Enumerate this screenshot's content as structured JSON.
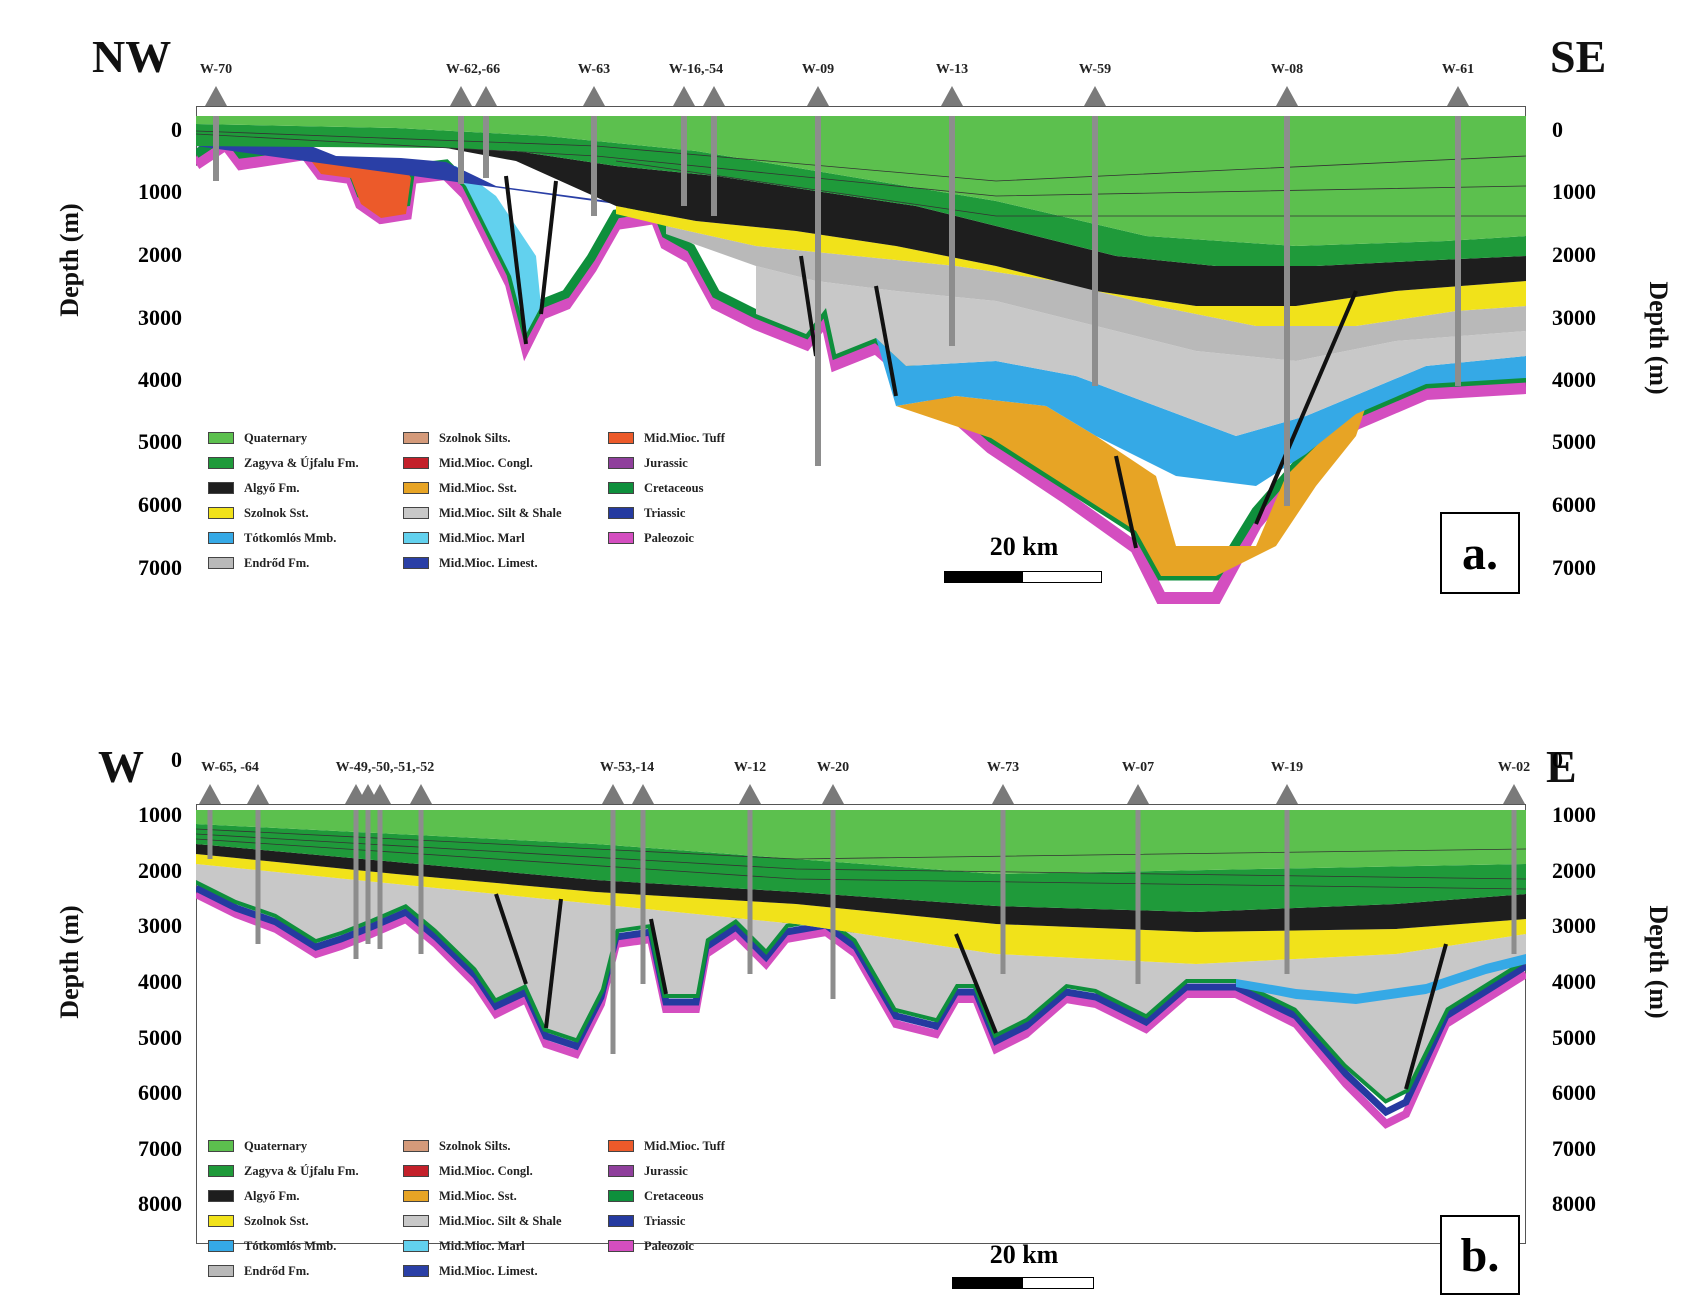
{
  "panels": [
    {
      "id": "a",
      "left_dir": "NW",
      "right_dir": "SE",
      "panel_label": "a.",
      "scale_label": "20 km",
      "depth_label": "Depth (m)",
      "depth_ticks": [
        "0",
        "1000",
        "2000",
        "3000",
        "4000",
        "5000",
        "6000",
        "7000"
      ],
      "wells": [
        "W-70",
        "W-62,-66",
        "W-63",
        "W-16,-54",
        "W-09",
        "W-13",
        "W-59",
        "W-08",
        "W-61"
      ]
    },
    {
      "id": "b",
      "left_dir": "W",
      "right_dir": "E",
      "panel_label": "b.",
      "scale_label": "20 km",
      "depth_label": "Depth (m)",
      "depth_ticks": [
        "0",
        "1000",
        "2000",
        "3000",
        "4000",
        "5000",
        "6000",
        "7000",
        "8000"
      ],
      "wells": [
        "W-65, -64",
        "W-49,-50,-51,-52",
        "W-53,-14",
        "W-12",
        "W-20",
        "W-73",
        "W-07",
        "W-19",
        "W-02"
      ]
    }
  ],
  "legend": [
    {
      "label": "Quaternary",
      "color": "#5cc04e"
    },
    {
      "label": "Zagyva & Újfalu Fm.",
      "color": "#1f9a3a"
    },
    {
      "label": "Algyő Fm.",
      "color": "#1e1e1e"
    },
    {
      "label": "Szolnok Sst.",
      "color": "#f1e21a"
    },
    {
      "label": "Tótkomlós Mmb.",
      "color": "#35a9e6"
    },
    {
      "label": "Endrőd Fm.",
      "color": "#b9b9b9"
    },
    {
      "label": "Szolnok Silts.",
      "color": "#d49a7a"
    },
    {
      "label": "Mid.Mioc. Congl.",
      "color": "#c3202a"
    },
    {
      "label": "Mid.Mioc. Sst.",
      "color": "#e7a425"
    },
    {
      "label": "Mid.Mioc. Silt & Shale",
      "color": "#c8c8c8"
    },
    {
      "label": "Mid.Mioc. Marl",
      "color": "#62d1ee"
    },
    {
      "label": "Mid.Mioc. Limest.",
      "color": "#2a3fa6"
    },
    {
      "label": "Mid.Mioc. Tuff",
      "color": "#ec5a2a"
    },
    {
      "label": "Jurassic",
      "color": "#8f3f9c"
    },
    {
      "label": "Cretaceous",
      "color": "#0e8f3c"
    },
    {
      "label": "Triassic",
      "color": "#253aa0"
    },
    {
      "label": "Paleozoic",
      "color": "#d44ec0"
    }
  ]
}
